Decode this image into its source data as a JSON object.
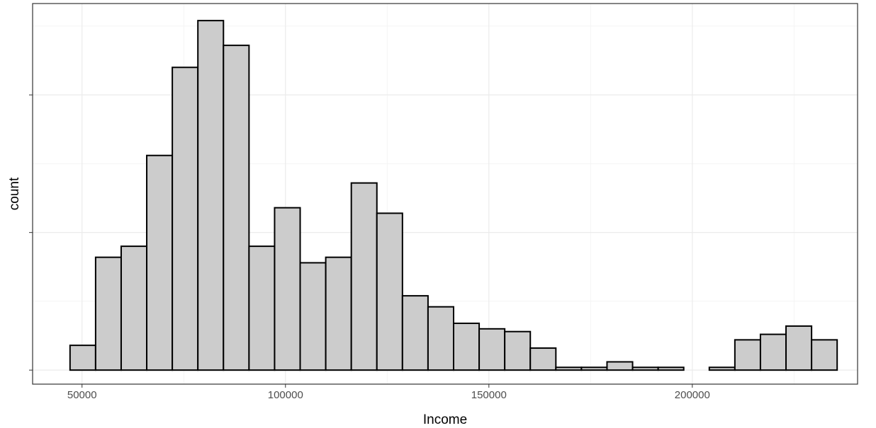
{
  "chart_data": {
    "type": "histogram",
    "x_label": "Income",
    "y_label": "count",
    "bins": [
      47050,
      53335,
      59620,
      65905,
      72190,
      78475,
      84760,
      91045,
      97330,
      103615,
      109900,
      116185,
      122470,
      128755,
      135040,
      141325,
      147610,
      153895,
      160180,
      166465,
      172750,
      179035,
      185320,
      191605,
      197890,
      204175,
      210460,
      216745,
      223030,
      229315,
      235600
    ],
    "values": [
      9,
      41,
      45,
      78,
      110,
      127,
      118,
      45,
      59,
      39,
      41,
      68,
      57,
      27,
      23,
      17,
      15,
      14,
      8,
      1,
      1,
      3,
      1,
      1,
      0,
      1,
      11,
      13,
      16,
      11
    ],
    "color": "#cccccc",
    "edge_color": "#000000",
    "xlim": [
      37850,
      240620
    ],
    "xticks": [
      50000,
      100000,
      150000,
      200000
    ],
    "ylim": [
      -5.1,
      133.2
    ],
    "yticks": [
      0,
      50,
      100
    ],
    "grid": true
  }
}
